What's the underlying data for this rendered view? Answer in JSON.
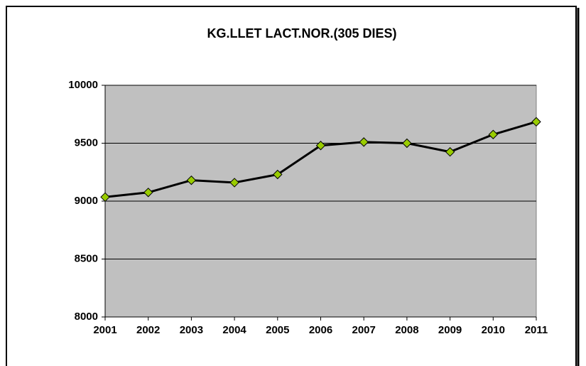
{
  "chart_data": {
    "type": "line",
    "title": "KG.LLET LACT.NOR.(305 DIES)",
    "categories": [
      "2001",
      "2002",
      "2003",
      "2004",
      "2005",
      "2006",
      "2007",
      "2008",
      "2009",
      "2010",
      "2011"
    ],
    "values": [
      9035,
      9075,
      9180,
      9160,
      9230,
      9480,
      9510,
      9500,
      9425,
      9575,
      9685
    ],
    "color": "#000000",
    "marker_color": "#99cc00",
    "ylim": [
      8000,
      10000
    ],
    "yticks": [
      8000,
      8500,
      9000,
      9500,
      10000
    ],
    "grid": true
  }
}
